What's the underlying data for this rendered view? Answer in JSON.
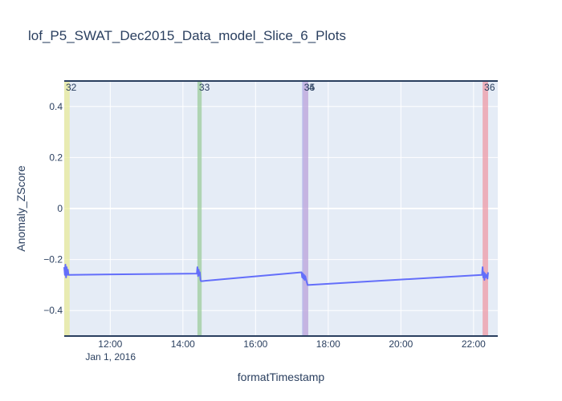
{
  "chart_data": {
    "type": "line",
    "title": "lof_P5_SWAT_Dec2015_Data_model_Slice_6_Plots",
    "xlabel": "formatTimestamp",
    "ylabel": "Anomaly_ZScore",
    "xlim": [
      "2016-01-01 10:44",
      "2016-01-01 22:40"
    ],
    "ylim": [
      -0.5,
      0.5
    ],
    "x_tick_labels": [
      "12:00",
      "14:00",
      "16:00",
      "18:00",
      "20:00",
      "22:00"
    ],
    "x_tick_values": [
      "2016-01-01 12:00",
      "2016-01-01 14:00",
      "2016-01-01 16:00",
      "2016-01-01 18:00",
      "2016-01-01 20:00",
      "2016-01-01 22:00"
    ],
    "x_date_label": "Jan 1, 2016",
    "y_tick_labels": [
      "0.4",
      "0.2",
      "0",
      "−0.2",
      "−0.4"
    ],
    "y_tick_values": [
      0.4,
      0.2,
      0,
      -0.2,
      -0.4
    ],
    "grid": true,
    "background": "#e5ecf6",
    "line_color": "#636efa",
    "bands": [
      {
        "label": "32",
        "x0": "2016-01-01 10:44",
        "x1": "2016-01-01 10:53",
        "color": "#e8eb9a"
      },
      {
        "label": "33",
        "x0": "2016-01-01 14:24",
        "x1": "2016-01-01 14:31",
        "color": "#9ccc9c"
      },
      {
        "label": "34",
        "x0": "2016-01-01 17:17",
        "x1": "2016-01-01 17:19",
        "color": "#a9a6e6"
      },
      {
        "label": "35",
        "x0": "2016-01-01 17:19",
        "x1": "2016-01-01 17:27",
        "color": "#b9a1da"
      },
      {
        "label": "36",
        "x0": "2016-01-01 22:15",
        "x1": "2016-01-01 22:24",
        "color": "#ee9aa6"
      }
    ],
    "series": [
      {
        "points": [
          [
            "2016-01-01 10:44",
            -0.23
          ],
          [
            "2016-01-01 10:45",
            -0.26
          ],
          [
            "2016-01-01 10:46",
            -0.22
          ],
          [
            "2016-01-01 10:47",
            -0.27
          ],
          [
            "2016-01-01 10:48",
            -0.23
          ],
          [
            "2016-01-01 10:49",
            -0.26
          ],
          [
            "2016-01-01 10:50",
            -0.24
          ],
          [
            "2016-01-01 10:51",
            -0.26
          ],
          [
            "2016-01-01 10:52",
            -0.26
          ],
          [
            "2016-01-01 14:23",
            -0.255
          ],
          [
            "2016-01-01 14:24",
            -0.23
          ],
          [
            "2016-01-01 14:25",
            -0.265
          ],
          [
            "2016-01-01 14:26",
            -0.24
          ],
          [
            "2016-01-01 14:27",
            -0.26
          ],
          [
            "2016-01-01 14:28",
            -0.25
          ],
          [
            "2016-01-01 14:29",
            -0.28
          ],
          [
            "2016-01-01 14:30",
            -0.285
          ],
          [
            "2016-01-01 17:16",
            -0.25
          ],
          [
            "2016-01-01 17:17",
            -0.27
          ],
          [
            "2016-01-01 17:18",
            -0.255
          ],
          [
            "2016-01-01 17:19",
            -0.275
          ],
          [
            "2016-01-01 17:20",
            -0.26
          ],
          [
            "2016-01-01 17:21",
            -0.28
          ],
          [
            "2016-01-01 17:22",
            -0.265
          ],
          [
            "2016-01-01 17:24",
            -0.285
          ],
          [
            "2016-01-01 17:26",
            -0.3
          ],
          [
            "2016-01-01 22:14",
            -0.26
          ],
          [
            "2016-01-01 22:15",
            -0.23
          ],
          [
            "2016-01-01 22:16",
            -0.27
          ],
          [
            "2016-01-01 22:17",
            -0.25
          ],
          [
            "2016-01-01 22:18",
            -0.28
          ],
          [
            "2016-01-01 22:19",
            -0.255
          ],
          [
            "2016-01-01 22:20",
            -0.27
          ],
          [
            "2016-01-01 22:22",
            -0.26
          ],
          [
            "2016-01-01 22:23",
            -0.275
          ],
          [
            "2016-01-01 22:24",
            -0.25
          ]
        ]
      }
    ]
  }
}
